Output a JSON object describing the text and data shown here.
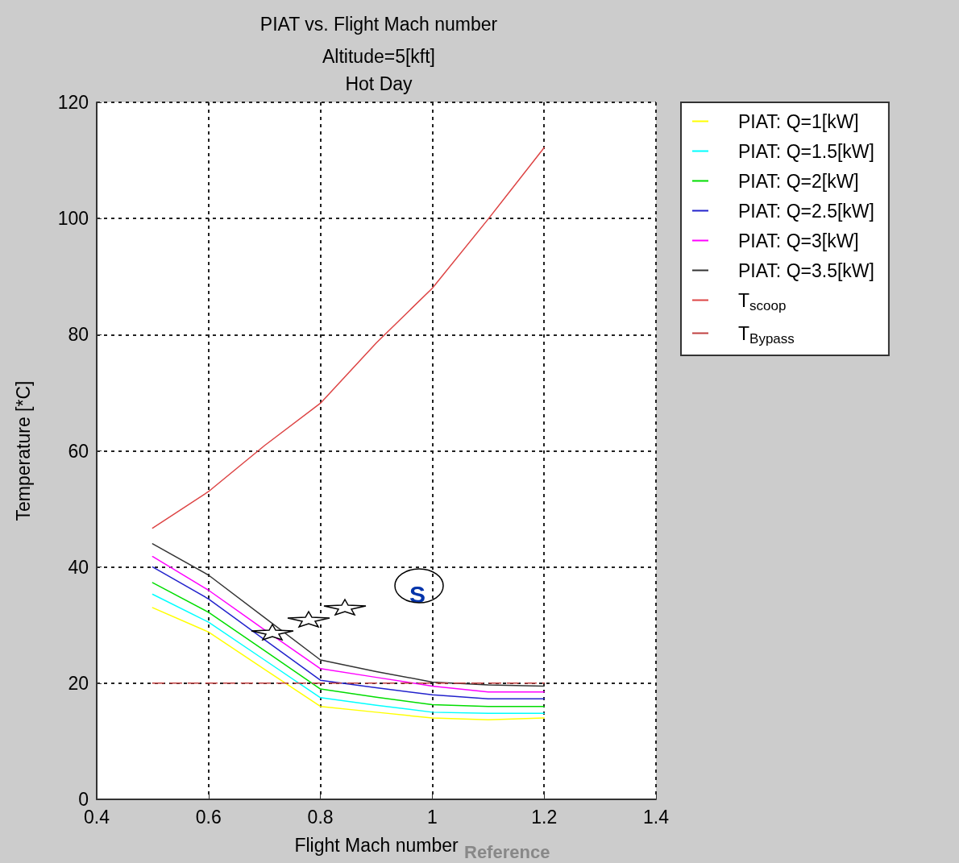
{
  "chart_data": {
    "type": "line",
    "title": "PIAT vs. Flight Mach number",
    "subtitle": "Altitude=5[kft]\nHot Day",
    "xlabel": "Flight Mach number",
    "ylabel": "Temperature [*C]",
    "x": [
      0.5,
      0.6,
      0.7,
      0.8,
      0.9,
      1.0,
      1.1,
      1.2
    ],
    "series": [
      {
        "name": "PIAT: Q=1[kW]",
        "color": "#ffff00",
        "values": [
          33,
          28.8,
          22.4,
          16,
          15,
          14,
          13.7,
          14
        ]
      },
      {
        "name": "PIAT: Q=1.5[kW]",
        "color": "#00ffff",
        "values": [
          35.3,
          30.5,
          24,
          17.5,
          16.2,
          15,
          14.8,
          14.8
        ]
      },
      {
        "name": "PIAT: Q=2[kW]",
        "color": "#00dd00",
        "values": [
          37.3,
          32.2,
          25.6,
          19,
          17.6,
          16.3,
          16,
          16
        ]
      },
      {
        "name": "PIAT: Q=2.5[kW]",
        "color": "#2222cc",
        "values": [
          40,
          34.5,
          27.5,
          20.5,
          19.2,
          18,
          17.3,
          17.3
        ]
      },
      {
        "name": "PIAT: Q=3[kW]",
        "color": "#ff00ff",
        "values": [
          41.8,
          36,
          29.2,
          22.5,
          21,
          19.5,
          18.5,
          18.5
        ]
      },
      {
        "name": "PIAT: Q=3.5[kW]",
        "color": "#333333",
        "values": [
          44,
          38.6,
          31.3,
          24,
          22,
          20.2,
          19.7,
          19.5
        ]
      },
      {
        "name": "T$_{scoop}$",
        "color": "#dd4444",
        "values": [
          46.7,
          53,
          60.9,
          68.2,
          78.6,
          88,
          99.9,
          112.2
        ]
      },
      {
        "name": "T$_{Bypass}$",
        "color": "#c04040",
        "line_style": "dashed",
        "values": [
          20,
          20,
          20,
          20,
          20,
          20,
          20,
          20
        ]
      }
    ],
    "xlim": [
      0.4,
      1.4
    ],
    "xticks": [
      0.4,
      0.6,
      0.8,
      1,
      1.2,
      1.4
    ],
    "ylim": [
      0,
      120
    ],
    "yticks": [
      0,
      20,
      40,
      60,
      80,
      100,
      120
    ],
    "grid": true,
    "legend": "top right",
    "marker": "none",
    "line_style": "solid",
    "annotations": [
      "S",
      "Reference"
    ]
  }
}
